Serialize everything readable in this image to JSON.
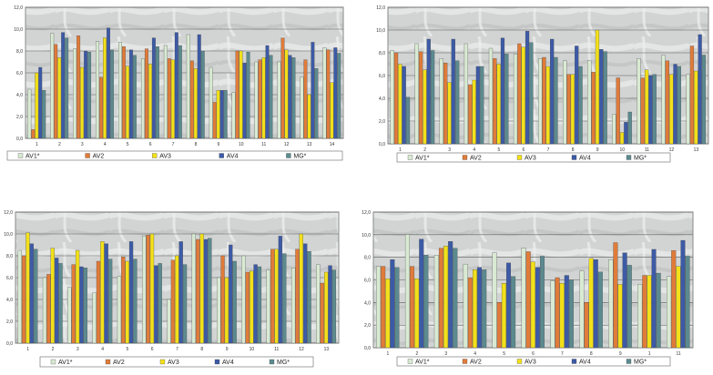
{
  "legend": [
    "AV1*",
    "AV2",
    "AV3",
    "AV4",
    "MG*"
  ],
  "colors": {
    "AV1*": "#d9ead3",
    "AV2": "#e07b39",
    "AV3": "#f2e01a",
    "AV4": "#3c5aa6",
    "MG*": "#5b8a8f"
  },
  "chart_data": [
    {
      "type": "bar",
      "ylim": [
        0,
        12
      ],
      "yticks": [
        "0,0",
        "2,0",
        "4,0",
        "6,0",
        "8,0",
        "10,0",
        "12,0"
      ],
      "categories": [
        "1",
        "2",
        "3",
        "4",
        "5",
        "6",
        "7",
        "8",
        "9",
        "10",
        "11",
        "12",
        "13",
        "14"
      ],
      "series": [
        {
          "name": "AV1*",
          "values": [
            4.5,
            9.6,
            8.2,
            8.9,
            8.8,
            7.3,
            8.5,
            9.5,
            6.5,
            4.2,
            7.0,
            7.0,
            5.6,
            8.3
          ]
        },
        {
          "name": "AV2",
          "values": [
            0.8,
            8.6,
            9.4,
            5.6,
            8.4,
            8.2,
            7.3,
            7.1,
            3.3,
            8.0,
            7.2,
            9.2,
            7.2,
            8.1
          ]
        },
        {
          "name": "AV3",
          "values": [
            6.0,
            7.4,
            6.5,
            9.2,
            6.6,
            6.8,
            7.2,
            6.4,
            4.4,
            8.0,
            7.4,
            8.1,
            4.0,
            5.1
          ]
        },
        {
          "name": "AV4",
          "values": [
            6.5,
            9.7,
            8.0,
            10.1,
            8.1,
            9.2,
            9.7,
            9.5,
            4.4,
            6.9,
            8.5,
            7.6,
            8.8,
            8.3
          ]
        },
        {
          "name": "MG*",
          "values": [
            4.4,
            9.2,
            7.9,
            8.1,
            7.6,
            8.4,
            8.5,
            8.0,
            4.4,
            7.9,
            7.6,
            7.4,
            6.4,
            7.8
          ]
        }
      ]
    },
    {
      "type": "bar",
      "ylim": [
        0,
        12
      ],
      "yticks": [
        "0,0",
        "2,0",
        "4,0",
        "6,0",
        "8,0",
        "10,0",
        "12,0"
      ],
      "categories": [
        "1",
        "2",
        "3",
        "4",
        "5",
        "6",
        "7",
        "8",
        "9",
        "10",
        "11",
        "12",
        "13"
      ],
      "series": [
        {
          "name": "AV1*",
          "values": [
            8.2,
            8.8,
            7.5,
            8.8,
            8.4,
            7.9,
            7.5,
            7.3,
            7.3,
            2.6,
            7.5,
            7.8,
            6.1
          ]
        },
        {
          "name": "AV2",
          "values": [
            8.0,
            8.1,
            7.1,
            5.2,
            7.5,
            8.8,
            7.6,
            6.1,
            6.3,
            5.8,
            5.8,
            7.3,
            8.6
          ]
        },
        {
          "name": "AV3",
          "values": [
            7.0,
            6.5,
            5.4,
            5.6,
            7.0,
            8.5,
            6.8,
            6.1,
            10.0,
            1.0,
            6.5,
            6.1,
            6.4
          ]
        },
        {
          "name": "AV4",
          "values": [
            6.8,
            9.2,
            9.2,
            6.8,
            9.3,
            9.9,
            9.2,
            8.6,
            8.3,
            1.9,
            6.0,
            7.0,
            9.6
          ]
        },
        {
          "name": "MG*",
          "values": [
            4.1,
            8.2,
            7.3,
            6.8,
            7.9,
            8.9,
            7.6,
            6.8,
            8.1,
            2.8,
            6.1,
            6.8,
            7.8
          ]
        }
      ]
    },
    {
      "type": "bar",
      "ylim": [
        0,
        12
      ],
      "yticks": [
        "0,0",
        "2,0",
        "4,0",
        "6,0",
        "8,0",
        "10,0",
        "12,0"
      ],
      "categories": [
        "1",
        "2",
        "3",
        "4",
        "5",
        "6",
        "7",
        "8",
        "9",
        "10",
        "11",
        "12",
        "13"
      ],
      "series": [
        {
          "name": "AV1*",
          "values": [
            8.5,
            6.0,
            5.1,
            4.6,
            6.1,
            9.8,
            4.0,
            10.0,
            6.0,
            8.0,
            6.7,
            6.9,
            7.2
          ]
        },
        {
          "name": "AV2",
          "values": [
            8.0,
            6.3,
            7.2,
            7.5,
            7.9,
            9.9,
            7.6,
            9.5,
            8.0,
            6.5,
            8.6,
            8.6,
            5.5
          ]
        },
        {
          "name": "AV3",
          "values": [
            10.1,
            8.7,
            8.5,
            9.3,
            7.5,
            10.0,
            8.0,
            10.0,
            6.0,
            6.6,
            8.6,
            10.0,
            6.5
          ]
        },
        {
          "name": "AV4",
          "values": [
            9.1,
            7.8,
            7.0,
            9.1,
            9.3,
            7.1,
            9.3,
            9.5,
            9.0,
            7.2,
            9.8,
            9.1,
            7.1
          ]
        },
        {
          "name": "MG*",
          "values": [
            8.6,
            7.3,
            6.9,
            7.7,
            7.7,
            7.3,
            7.2,
            9.6,
            7.5,
            7.0,
            8.2,
            8.4,
            6.7
          ]
        }
      ]
    },
    {
      "type": "bar",
      "ylim": [
        0,
        12
      ],
      "yticks": [
        "0,0",
        "2,0",
        "4,0",
        "6,0",
        "8,0",
        "10,0",
        "12,0"
      ],
      "categories": [
        "1",
        "2",
        "3",
        "4",
        "5",
        "6",
        "7",
        "8",
        "9",
        "1",
        "11"
      ],
      "series": [
        {
          "name": "AV1*",
          "values": [
            7.2,
            10.0,
            8.2,
            7.4,
            8.4,
            8.8,
            5.9,
            6.8,
            7.8,
            5.6,
            6.3
          ]
        },
        {
          "name": "AV2",
          "values": [
            7.2,
            7.2,
            8.8,
            6.2,
            4.0,
            8.5,
            6.2,
            4.0,
            9.3,
            6.4,
            8.6
          ]
        },
        {
          "name": "AV3",
          "values": [
            6.1,
            6.1,
            9.0,
            6.9,
            5.7,
            7.6,
            5.7,
            7.9,
            5.6,
            6.4,
            7.2
          ]
        },
        {
          "name": "AV4",
          "values": [
            7.8,
            9.6,
            9.4,
            7.1,
            7.5,
            7.1,
            6.4,
            7.8,
            8.4,
            8.7,
            9.5
          ]
        },
        {
          "name": "MG*",
          "values": [
            7.1,
            8.2,
            8.8,
            6.9,
            6.3,
            8.1,
            6.0,
            6.7,
            7.3,
            6.6,
            8.1
          ]
        }
      ]
    }
  ]
}
